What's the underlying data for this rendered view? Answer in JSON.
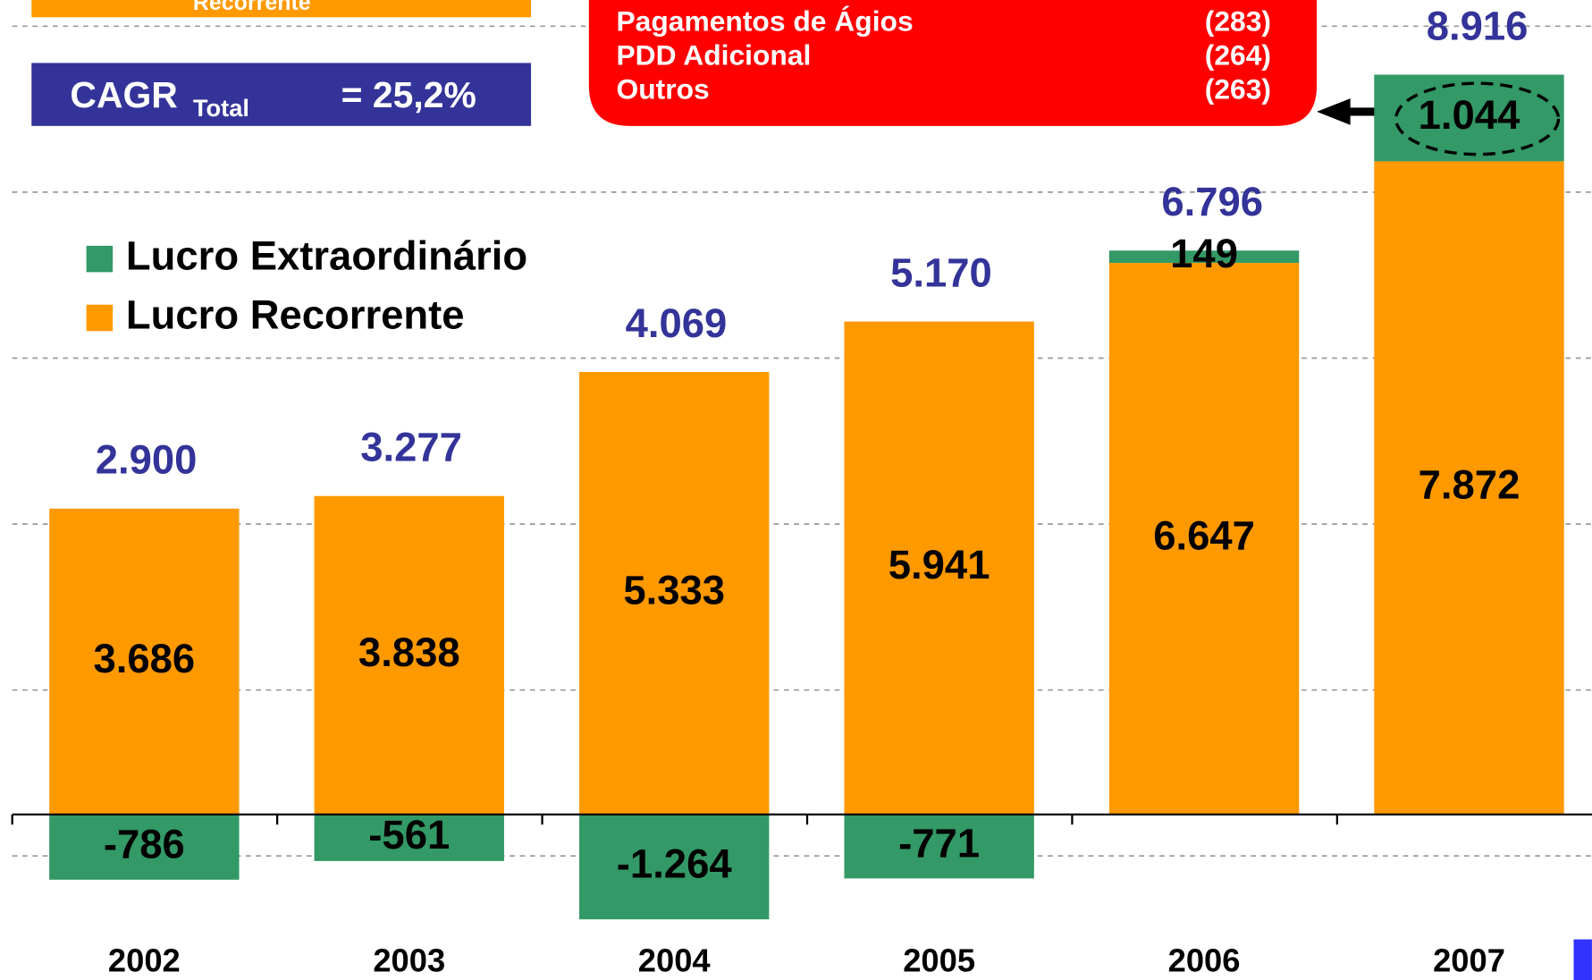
{
  "chart_data": {
    "type": "bar",
    "stacked": true,
    "categories": [
      "2002",
      "2003",
      "2004",
      "2005",
      "2006",
      "2007"
    ],
    "series": [
      {
        "name": "Lucro Recorrente",
        "color": "#ff9900",
        "values": [
          3686,
          3838,
          5333,
          5941,
          6647,
          7872
        ],
        "value_labels": [
          "3.686",
          "3.838",
          "5.333",
          "5.941",
          "6.647",
          "7.872"
        ]
      },
      {
        "name": "Lucro Extraordinário",
        "color": "#339966",
        "values": [
          -786,
          -561,
          -1264,
          -771,
          149,
          1044
        ],
        "value_labels": [
          "-786",
          "-561",
          "-1.264",
          "-771",
          "149",
          "1.044"
        ]
      }
    ],
    "totals": {
      "values": [
        2900,
        3277,
        4069,
        5170,
        6796,
        8916
      ],
      "value_labels": [
        "2.900",
        "3.277",
        "4.069",
        "5.170",
        "6.796",
        "8.916"
      ],
      "color": "#333399"
    },
    "ylim": [
      -1995,
      9816
    ],
    "yticks": [
      -500,
      1500,
      3500,
      5500,
      7500,
      9500
    ],
    "grid": true,
    "legend": "upper left",
    "cagr_recorrente": {
      "label": "Recorrente"
    },
    "cagr_total": {
      "label": "CAGR",
      "sub": "Total",
      "value": "= 25,2%"
    },
    "callout": {
      "items": [
        {
          "label": "Pagamentos de Ágios",
          "value": "(283)"
        },
        {
          "label": "PDD Adicional",
          "value": "(264)"
        },
        {
          "label": "Outros",
          "value": "(263)"
        }
      ]
    }
  }
}
